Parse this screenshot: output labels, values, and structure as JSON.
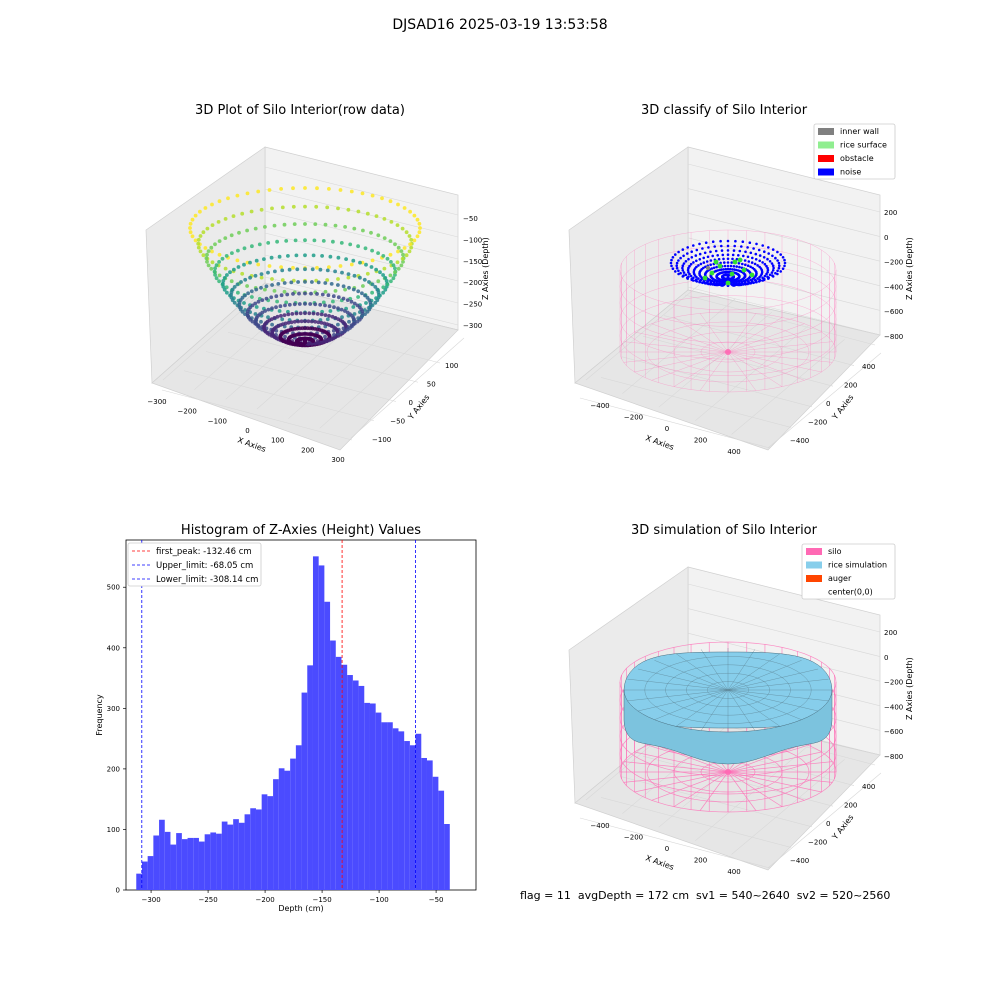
{
  "suptitle": "DJSAD16 2025-03-19 13:53:58",
  "footer": "flag = 11  avgDepth = 172 cm  sv1 = 540~2640  sv2 = 520~2560",
  "colors": {
    "inner_wall": "#808080",
    "rice_surface": "#90ee90",
    "obstacle": "#ff0000",
    "noise": "#0000ff",
    "silo": "#ff69b4",
    "rice_simulation": "#87ceeb",
    "auger": "#ff4500",
    "histogram_bar": "#4b4bff",
    "first_peak_line": "#ff0000",
    "limit_line": "#0000ff"
  },
  "chart_data": [
    {
      "type": "scatter3d",
      "title": "3D Plot of Silo Interior(row data)",
      "xlabel": "X Axies",
      "ylabel": "Y Axies",
      "zlabel": "Z Axies (Depth)",
      "xticks": [
        "−300",
        "−200",
        "−100",
        "0",
        "100",
        "200",
        "300"
      ],
      "yticks": [
        "−100",
        "−50",
        "0",
        "50",
        "100"
      ],
      "zticks": [
        "−50",
        "−100",
        "−150",
        "−200",
        "−250",
        "−300"
      ],
      "xlim": [
        -320,
        320
      ],
      "ylim": [
        -130,
        130
      ],
      "zlim": [
        -330,
        -30
      ],
      "colormap": "viridis"
    },
    {
      "type": "scatter3d",
      "title": "3D classify of Silo Interior",
      "xlabel": "X Axies",
      "ylabel": "Y Axies",
      "zlabel": "Z Axies (Depth)",
      "xticks": [
        "−400",
        "−200",
        "0",
        "200",
        "400"
      ],
      "yticks": [
        "−400",
        "−200",
        "0",
        "200",
        "400"
      ],
      "zticks": [
        "200",
        "0",
        "−200",
        "−400",
        "−600",
        "−800"
      ],
      "legend_position": "upper right",
      "legend": [
        {
          "label": "inner wall",
          "color": "#808080"
        },
        {
          "label": "rice surface",
          "color": "#90ee90"
        },
        {
          "label": "obstacle",
          "color": "#ff0000"
        },
        {
          "label": "noise",
          "color": "#0000ff"
        }
      ]
    },
    {
      "type": "bar",
      "title": "Histogram of Z-Axies (Height) Values",
      "xlabel": "Depth (cm)",
      "ylabel": "Frequency",
      "xlim": [
        -322,
        -15
      ],
      "ylim": [
        0,
        578
      ],
      "xticks": [
        -300,
        -250,
        -200,
        -150,
        -100,
        -50
      ],
      "xtick_labels": [
        "−300",
        "−250",
        "−200",
        "−150",
        "−100",
        "−50"
      ],
      "yticks": [
        0,
        100,
        200,
        300,
        400,
        500
      ],
      "bin_start": -313,
      "bin_width": 5,
      "values": [
        27,
        47,
        56,
        90,
        116,
        96,
        75,
        94,
        84,
        86,
        86,
        80,
        92,
        95,
        93,
        113,
        108,
        117,
        111,
        125,
        135,
        133,
        158,
        155,
        183,
        201,
        197,
        217,
        239,
        326,
        371,
        551,
        536,
        476,
        412,
        385,
        372,
        355,
        346,
        337,
        309,
        308,
        293,
        277,
        277,
        267,
        262,
        246,
        239,
        258,
        218,
        214,
        187,
        164,
        109
      ],
      "vlines": [
        {
          "label": "first_peak: -132.46 cm",
          "x": -132.46,
          "color": "#ff0000"
        },
        {
          "label": "Upper_limit: -68.05 cm",
          "x": -68.05,
          "color": "#0000ff"
        },
        {
          "label": "Lower_limit: -308.14 cm",
          "x": -308.14,
          "color": "#0000ff"
        }
      ]
    },
    {
      "type": "surface3d",
      "title": "3D simulation of Silo Interior",
      "xlabel": "X Axies",
      "ylabel": "Y Axies",
      "zlabel": "Z Axies (Depth)",
      "xticks": [
        "−400",
        "−200",
        "0",
        "200",
        "400"
      ],
      "yticks": [
        "−400",
        "−200",
        "0",
        "200",
        "400"
      ],
      "zticks": [
        "200",
        "0",
        "−200",
        "−400",
        "−600",
        "−800"
      ],
      "legend_position": "upper right",
      "legend": [
        {
          "label": "silo",
          "color": "#ff69b4"
        },
        {
          "label": "rice simulation",
          "color": "#87ceeb"
        },
        {
          "label": "auger",
          "color": "#ff4500"
        },
        {
          "label": "center(0,0)",
          "color": ""
        }
      ]
    }
  ]
}
